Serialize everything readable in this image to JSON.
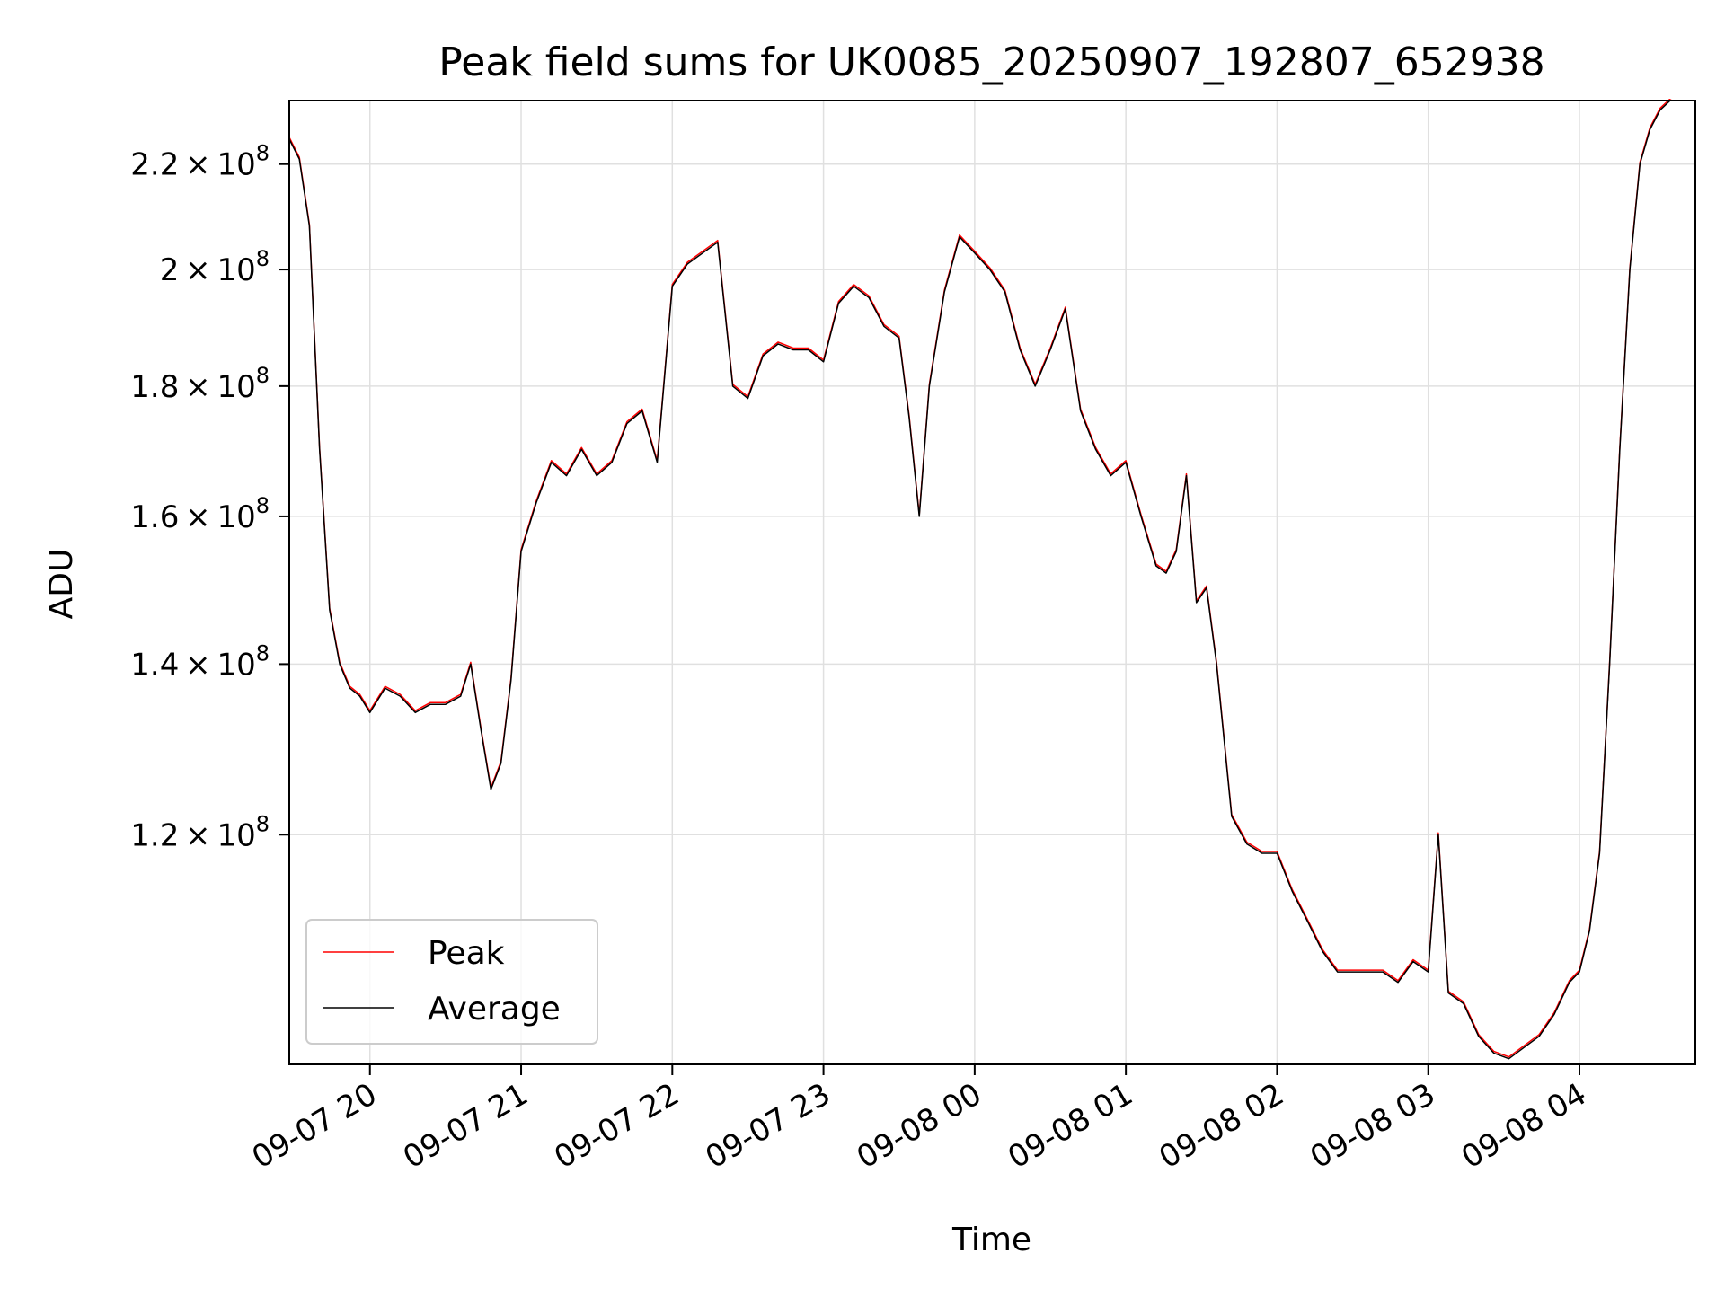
{
  "chart_data": {
    "type": "line",
    "title": "Peak field sums for UK0085_20250907_192807_652938",
    "xlabel": "Time",
    "ylabel": "ADU",
    "yscale": "log",
    "ylim": [
      97500000,
      233000000
    ],
    "xlim": [
      "2025-09-07 19:28",
      "2025-09-08 04:46"
    ],
    "grid": true,
    "legend_position": "lower-left",
    "x_ticks": [
      {
        "t": "2025-09-07 20:00",
        "label": "09-07 20"
      },
      {
        "t": "2025-09-07 21:00",
        "label": "09-07 21"
      },
      {
        "t": "2025-09-07 22:00",
        "label": "09-07 22"
      },
      {
        "t": "2025-09-07 23:00",
        "label": "09-07 23"
      },
      {
        "t": "2025-09-08 00:00",
        "label": "09-08 00"
      },
      {
        "t": "2025-09-08 01:00",
        "label": "09-08 01"
      },
      {
        "t": "2025-09-08 02:00",
        "label": "09-08 02"
      },
      {
        "t": "2025-09-08 03:00",
        "label": "09-08 03"
      },
      {
        "t": "2025-09-08 04:00",
        "label": "09-08 04"
      }
    ],
    "y_ticks": [
      {
        "value": 120000000,
        "mantissa": "1.2",
        "exponent": "8"
      },
      {
        "value": 140000000,
        "mantissa": "1.4",
        "exponent": "8"
      },
      {
        "value": 160000000,
        "mantissa": "1.6",
        "exponent": "8"
      },
      {
        "value": 180000000,
        "mantissa": "1.8",
        "exponent": "8"
      },
      {
        "value": 200000000,
        "mantissa": "2",
        "exponent": "8"
      },
      {
        "value": 220000000,
        "mantissa": "2.2",
        "exponent": "8"
      }
    ],
    "y_tick_times_symbol": "×",
    "y_tick_base": "10",
    "series": [
      {
        "name": "Peak",
        "color": "#ff0000"
      },
      {
        "name": "Average",
        "color": "#000000"
      }
    ],
    "x": [
      "2025-09-07 19:28",
      "2025-09-07 19:32",
      "2025-09-07 19:36",
      "2025-09-07 19:40",
      "2025-09-07 19:44",
      "2025-09-07 19:48",
      "2025-09-07 19:52",
      "2025-09-07 19:56",
      "2025-09-07 20:00",
      "2025-09-07 20:06",
      "2025-09-07 20:12",
      "2025-09-07 20:18",
      "2025-09-07 20:24",
      "2025-09-07 20:30",
      "2025-09-07 20:36",
      "2025-09-07 20:40",
      "2025-09-07 20:44",
      "2025-09-07 20:48",
      "2025-09-07 20:52",
      "2025-09-07 20:56",
      "2025-09-07 21:00",
      "2025-09-07 21:06",
      "2025-09-07 21:12",
      "2025-09-07 21:18",
      "2025-09-07 21:24",
      "2025-09-07 21:30",
      "2025-09-07 21:36",
      "2025-09-07 21:42",
      "2025-09-07 21:48",
      "2025-09-07 21:54",
      "2025-09-07 22:00",
      "2025-09-07 22:06",
      "2025-09-07 22:12",
      "2025-09-07 22:18",
      "2025-09-07 22:24",
      "2025-09-07 22:30",
      "2025-09-07 22:36",
      "2025-09-07 22:42",
      "2025-09-07 22:48",
      "2025-09-07 22:54",
      "2025-09-07 23:00",
      "2025-09-07 23:06",
      "2025-09-07 23:12",
      "2025-09-07 23:18",
      "2025-09-07 23:24",
      "2025-09-07 23:30",
      "2025-09-07 23:34",
      "2025-09-07 23:38",
      "2025-09-07 23:42",
      "2025-09-07 23:48",
      "2025-09-07 23:54",
      "2025-09-08 00:00",
      "2025-09-08 00:06",
      "2025-09-08 00:12",
      "2025-09-08 00:18",
      "2025-09-08 00:24",
      "2025-09-08 00:30",
      "2025-09-08 00:36",
      "2025-09-08 00:42",
      "2025-09-08 00:48",
      "2025-09-08 00:54",
      "2025-09-08 01:00",
      "2025-09-08 01:06",
      "2025-09-08 01:12",
      "2025-09-08 01:16",
      "2025-09-08 01:20",
      "2025-09-08 01:24",
      "2025-09-08 01:28",
      "2025-09-08 01:32",
      "2025-09-08 01:36",
      "2025-09-08 01:42",
      "2025-09-08 01:48",
      "2025-09-08 01:54",
      "2025-09-08 02:00",
      "2025-09-08 02:06",
      "2025-09-08 02:12",
      "2025-09-08 02:18",
      "2025-09-08 02:24",
      "2025-09-08 02:30",
      "2025-09-08 02:36",
      "2025-09-08 02:42",
      "2025-09-08 02:48",
      "2025-09-08 02:54",
      "2025-09-08 03:00",
      "2025-09-08 03:04",
      "2025-09-08 03:08",
      "2025-09-08 03:14",
      "2025-09-08 03:20",
      "2025-09-08 03:26",
      "2025-09-08 03:32",
      "2025-09-08 03:38",
      "2025-09-08 03:44",
      "2025-09-08 03:50",
      "2025-09-08 03:56",
      "2025-09-08 04:00",
      "2025-09-08 04:04",
      "2025-09-08 04:08",
      "2025-09-08 04:12",
      "2025-09-08 04:16",
      "2025-09-08 04:20",
      "2025-09-08 04:24",
      "2025-09-08 04:28",
      "2025-09-08 04:32",
      "2025-09-08 04:36",
      "2025-09-08 04:40",
      "2025-09-08 04:44",
      "2025-09-08 04:46"
    ],
    "values": [
      225000000,
      221000000,
      208000000,
      170000000,
      147000000,
      140000000,
      137000000,
      136000000,
      134000000,
      137000000,
      136000000,
      134000000,
      135000000,
      135000000,
      136000000,
      140000000,
      132000000,
      125000000,
      128000000,
      138000000,
      155000000,
      162000000,
      168000000,
      166000000,
      170000000,
      166000000,
      168000000,
      174000000,
      176000000,
      168000000,
      197000000,
      201000000,
      203000000,
      205000000,
      180000000,
      178000000,
      185000000,
      187000000,
      186000000,
      186000000,
      184000000,
      194000000,
      197000000,
      195000000,
      190000000,
      188000000,
      175000000,
      160000000,
      180000000,
      196000000,
      206000000,
      203000000,
      200000000,
      196000000,
      186000000,
      180000000,
      186000000,
      193000000,
      176000000,
      170000000,
      166000000,
      168000000,
      160000000,
      153000000,
      152000000,
      155000000,
      166000000,
      148000000,
      150000000,
      140000000,
      122000000,
      119000000,
      118000000,
      118000000,
      114000000,
      111000000,
      108000000,
      106000000,
      106000000,
      106000000,
      106000000,
      105000000,
      107000000,
      106000000,
      120000000,
      104000000,
      103000000,
      100000000,
      98500000,
      98000000,
      99000000,
      100000000,
      102000000,
      105000000,
      106000000,
      110000000,
      118000000,
      140000000,
      170000000,
      200000000,
      220000000,
      227000000,
      231000000,
      233000000,
      234000000,
      234000000,
      234000000
    ]
  }
}
